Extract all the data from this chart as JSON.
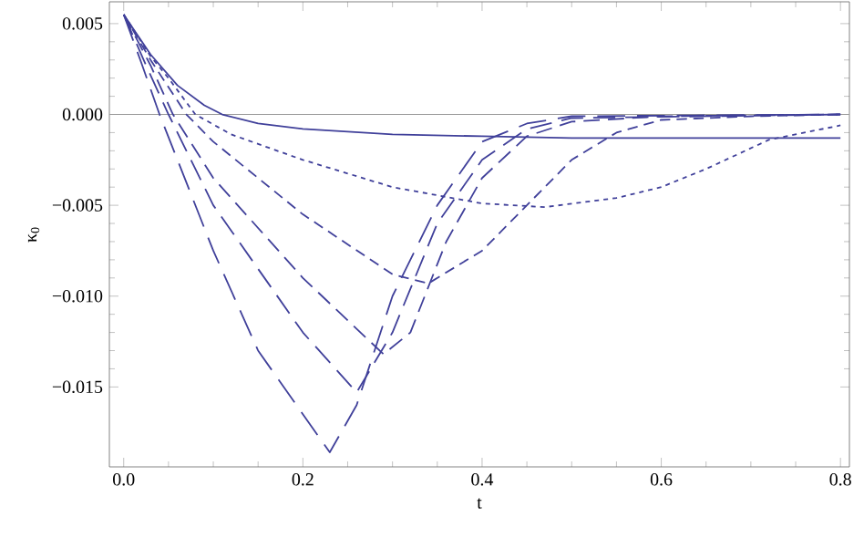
{
  "chart_data": {
    "type": "line",
    "xlabel": "t",
    "ylabel": "κ$_{0}$",
    "xlim": [
      -0.016,
      0.81
    ],
    "ylim": [
      -0.0194,
      0.0062
    ],
    "xticks": [
      {
        "value": 0,
        "label": "0.0"
      },
      0.2,
      0.4,
      0.6,
      0.8
    ],
    "yticks": [
      {
        "value": -0.015,
        "label": "−0.015"
      },
      {
        "value": -0.01,
        "label": "−0.010"
      },
      {
        "value": -0.005,
        "label": "−0.005"
      },
      {
        "value": 0,
        "label": "0.000"
      },
      0.005
    ],
    "grid": false,
    "marker": "none",
    "ref_lines": [
      {
        "axis": "y",
        "value": 0,
        "color": "#9a9a9a"
      }
    ],
    "series": [
      {
        "color": "#40409a",
        "line_style": "solid",
        "x": [
          0,
          0.03,
          0.06,
          0.09,
          0.11,
          0.15,
          0.2,
          0.3,
          0.4,
          0.5,
          0.6,
          0.7,
          0.8
        ],
        "values": [
          0.0055,
          0.0033,
          0.0016,
          0.0005,
          0,
          -0.0005,
          -0.0008,
          -0.0011,
          -0.0012,
          -0.0013,
          -0.0013,
          -0.0013,
          -0.0013
        ]
      },
      {
        "color": "#40409a",
        "line_style": "dashed",
        "x": [
          0,
          0.03,
          0.05,
          0.08,
          0.12,
          0.2,
          0.3,
          0.4,
          0.47,
          0.55,
          0.6,
          0.65,
          0.72,
          0.8
        ],
        "values": [
          0.0055,
          0.0032,
          0.002,
          0,
          -0.0011,
          -0.0025,
          -0.004,
          -0.0049,
          -0.0051,
          -0.0046,
          -0.004,
          -0.003,
          -0.0014,
          -0.0006
        ]
      },
      {
        "color": "#40409a",
        "line_style": "dashed",
        "x": [
          0,
          0.03,
          0.07,
          0.1,
          0.2,
          0.3,
          0.34,
          0.4,
          0.45,
          0.5,
          0.55,
          0.6,
          0.7,
          0.8
        ],
        "values": [
          0.0055,
          0.003,
          0,
          -0.0015,
          -0.0055,
          -0.0088,
          -0.0093,
          -0.0075,
          -0.005,
          -0.0025,
          -0.001,
          -0.0003,
          -0.0001,
          0
        ]
      },
      {
        "color": "#40409a",
        "line_style": "dashed",
        "x": [
          0,
          0.03,
          0.055,
          0.1,
          0.2,
          0.29,
          0.32,
          0.36,
          0.4,
          0.45,
          0.5,
          0.6,
          0.8
        ],
        "values": [
          0.0055,
          0.0027,
          0,
          -0.0035,
          -0.009,
          -0.0132,
          -0.012,
          -0.007,
          -0.0035,
          -0.0012,
          -0.0004,
          -0.0001,
          0
        ]
      },
      {
        "color": "#40409a",
        "line_style": "dashed",
        "x": [
          0,
          0.025,
          0.05,
          0.1,
          0.2,
          0.26,
          0.3,
          0.35,
          0.4,
          0.45,
          0.5,
          0.8
        ],
        "values": [
          0.0055,
          0.0027,
          0,
          -0.005,
          -0.012,
          -0.0153,
          -0.012,
          -0.006,
          -0.0025,
          -0.0008,
          -0.0002,
          0
        ]
      },
      {
        "color": "#40409a",
        "line_style": "dashed",
        "x": [
          0,
          0.02,
          0.04,
          0.1,
          0.15,
          0.23,
          0.26,
          0.3,
          0.35,
          0.4,
          0.45,
          0.5,
          0.8
        ],
        "values": [
          0.0055,
          0.0028,
          0,
          -0.0075,
          -0.013,
          -0.0186,
          -0.016,
          -0.01,
          -0.005,
          -0.0015,
          -0.0005,
          -0.0001,
          0
        ]
      }
    ]
  }
}
